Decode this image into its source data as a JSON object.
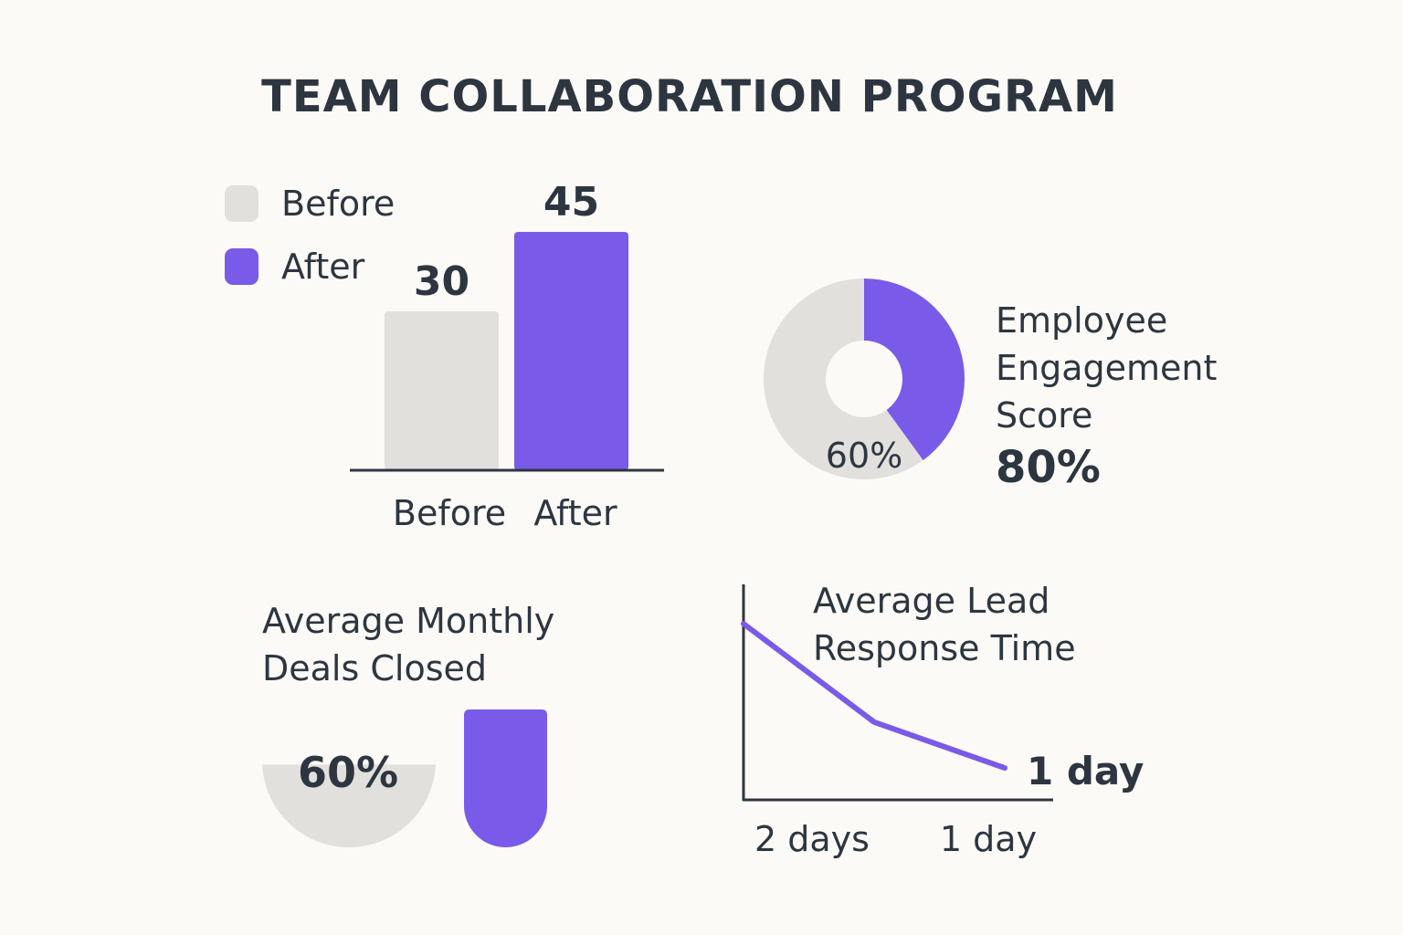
{
  "title": "TEAM COLLABORATION PROGRAM",
  "colors": {
    "before": "#e1e0dc",
    "after": "#7a5ae8",
    "text": "#2d3640",
    "background": "#fbfaf6"
  },
  "legend": [
    {
      "label": "Before",
      "color": "#e1e0dc"
    },
    {
      "label": "After",
      "color": "#7a5ae8"
    }
  ],
  "chart_data": [
    {
      "type": "bar",
      "title": "",
      "categories": [
        "Before",
        "After"
      ],
      "values": [
        30,
        45
      ],
      "data_labels": [
        "30",
        "45"
      ],
      "ylim": [
        0,
        50
      ]
    },
    {
      "type": "pie",
      "title": "Employee Engagement Score",
      "title_lines": [
        "Employee",
        "Engagement",
        "Score"
      ],
      "headline_value": "80%",
      "slices": [
        {
          "name": "Before",
          "value": 60,
          "label": "60%"
        },
        {
          "name": "After",
          "value": 40,
          "label": ""
        }
      ]
    },
    {
      "type": "bar",
      "title": "Average Monthly Deals Closed",
      "title_lines": [
        "Average Monthly",
        "Deals Closed"
      ],
      "categories": [
        "Before",
        "After"
      ],
      "values": [
        60,
        100
      ],
      "data_labels": [
        "60%",
        ""
      ]
    },
    {
      "type": "line",
      "title": "Average Lead Response Time",
      "title_lines": [
        "Average Lead",
        "Response Time"
      ],
      "x": [
        "",
        "2 days",
        "1 day"
      ],
      "y": [
        3.2,
        1.7,
        1
      ],
      "tick_labels": [
        "2 days",
        "1 day"
      ],
      "end_label": "1 day",
      "ylim": [
        0.5,
        3.8
      ]
    }
  ]
}
